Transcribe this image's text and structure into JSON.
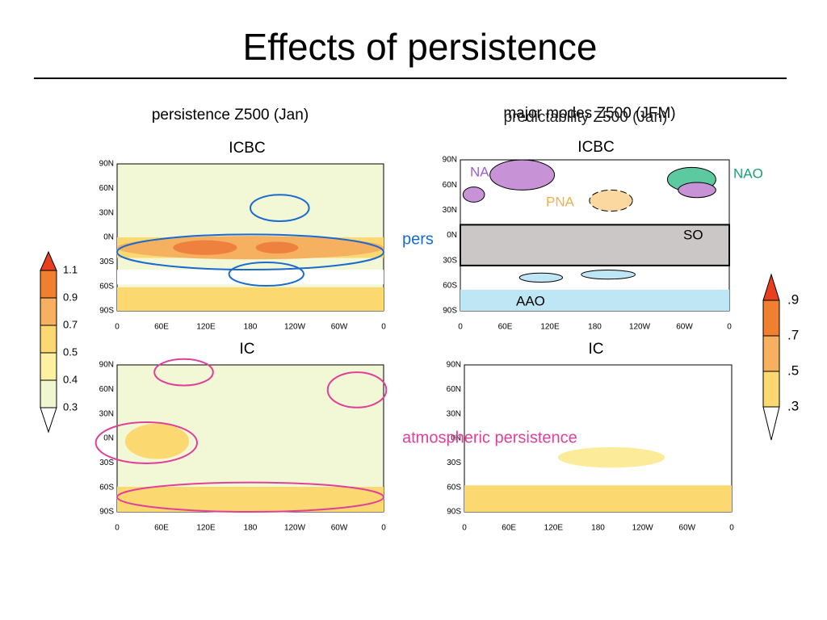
{
  "title": "Effects of persistence",
  "left": {
    "heading": "persistence Z500 (Jan)",
    "panels": [
      "ICBC",
      "IC"
    ]
  },
  "right": {
    "headings": [
      "major modes Z500 (JFM)",
      "predictability Z500 (Jan)"
    ],
    "panels": [
      "ICBC",
      "IC"
    ]
  },
  "modes": {
    "na": "NA",
    "nao": "NAO",
    "pna": "PNA",
    "so": "SO",
    "aao": "AAO"
  },
  "annotations": [
    "pers",
    "atmospheric persistence"
  ],
  "lat_labels": [
    "90N",
    "60N",
    "30N",
    "0N",
    "30S",
    "60S",
    "90S"
  ],
  "lon_labels": [
    "0",
    "60E",
    "120E",
    "180",
    "120W",
    "60W",
    "0"
  ],
  "colorbar_left": [
    "1.1",
    "0.9",
    "0.7",
    "0.5",
    "0.4",
    "0.3"
  ],
  "colorbar_right": [
    ".9",
    ".7",
    ".5",
    ".3"
  ]
}
